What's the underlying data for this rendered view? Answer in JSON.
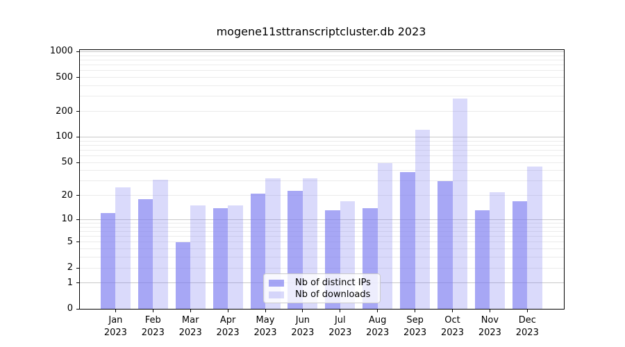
{
  "title": "mogene11sttranscriptcluster.db 2023",
  "chart_data": {
    "type": "bar",
    "title": "mogene11sttranscriptcluster.db 2023",
    "scale": "log10(1+y)",
    "grid": "on",
    "legend_position": "inside-bottom-center",
    "categories": [
      "Jan",
      "Feb",
      "Mar",
      "Apr",
      "May",
      "Jun",
      "Jul",
      "Aug",
      "Sep",
      "Oct",
      "Nov",
      "Dec"
    ],
    "year": "2023",
    "yticks": [
      0,
      1,
      2,
      5,
      10,
      20,
      50,
      100,
      200,
      500,
      1000
    ],
    "ylim": [
      0,
      1046
    ],
    "series": [
      {
        "name": "Nb of distinct IPs",
        "color": "#7A7AF0",
        "alpha": 0.66,
        "values": [
          12,
          18,
          5,
          14,
          21,
          23,
          13,
          14,
          38,
          30,
          13,
          17
        ]
      },
      {
        "name": "Nb of downloads",
        "color": "#7A7AF0",
        "alpha": 0.28,
        "values": [
          25,
          31,
          15,
          15,
          32,
          32,
          17,
          49,
          122,
          285,
          22,
          45
        ]
      }
    ]
  }
}
